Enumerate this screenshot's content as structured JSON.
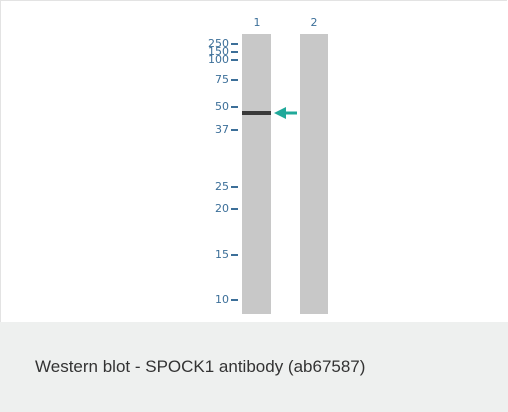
{
  "figure": {
    "lane_labels": [
      "1",
      "2"
    ],
    "markers": [
      "250",
      "150",
      "100",
      "75",
      "50",
      "37",
      "25",
      "20",
      "15",
      "10"
    ]
  },
  "caption": "Western blot - SPOCK1 antibody (ab67587)"
}
